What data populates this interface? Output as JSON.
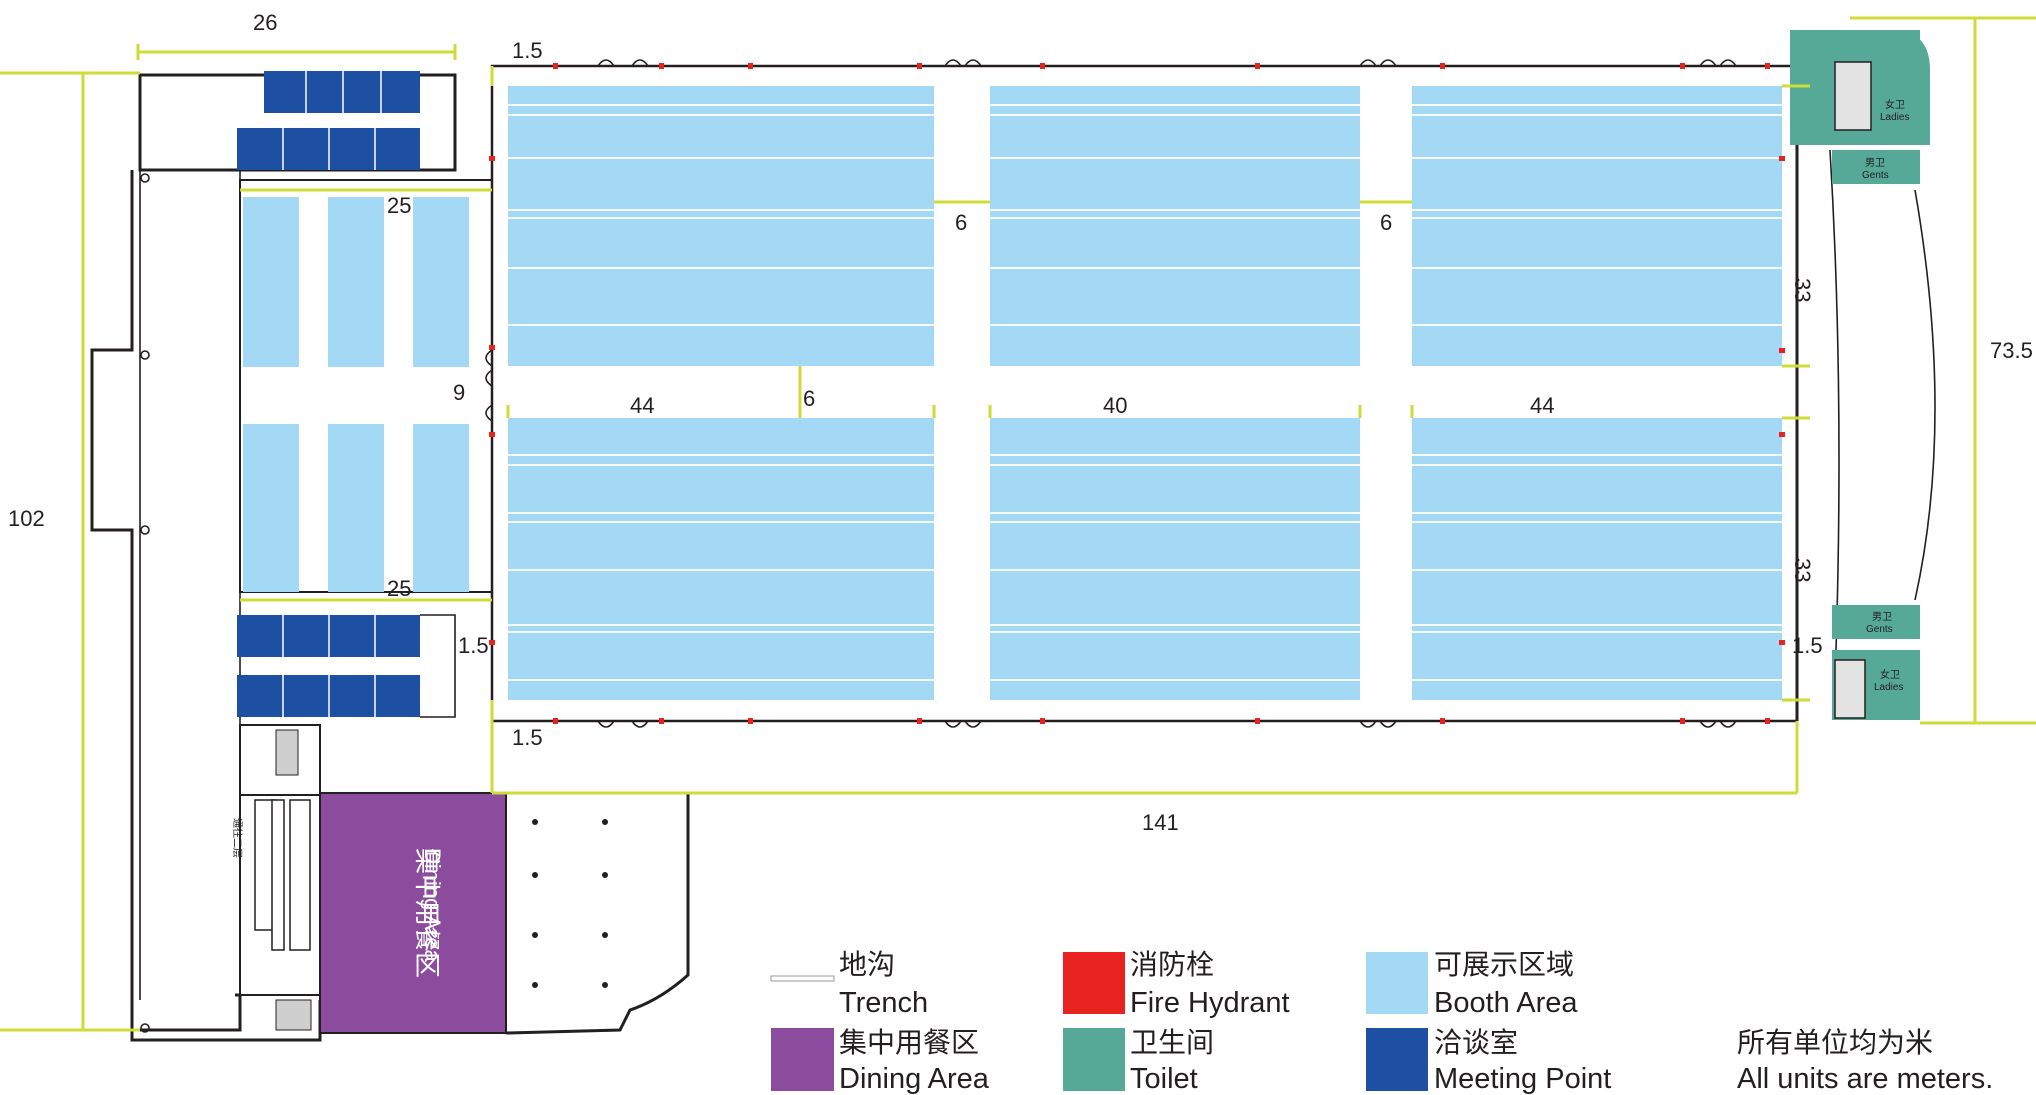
{
  "dimensions": {
    "top_hall_width": "26",
    "top_margin": "1.5",
    "meeting_block_top": "25",
    "meeting_block_bottom": "25",
    "booth_gap_1": "6",
    "booth_gap_2": "6",
    "west_aisle": "9",
    "middle_aisle": "6",
    "hall_a_width": "44",
    "hall_b_width": "40",
    "hall_c_width": "44",
    "east_upper": "33",
    "east_lower": "33",
    "left_margin": "1.5",
    "right_margin": "1.5",
    "bottom_margin": "1.5",
    "total_height": "102",
    "total_width": "141",
    "right_height": "73.5"
  },
  "rooms": {
    "ladies_top_cn": "女卫",
    "ladies_top_en": "Ladies",
    "gents_top_cn": "男卫",
    "gents_top_en": "Gents",
    "gents_bottom_cn": "男卫",
    "gents_bottom_en": "Gents",
    "ladies_bottom_cn": "女卫",
    "ladies_bottom_en": "Ladies",
    "stair_label": "通往二层",
    "dining_cn": "集中用餐区",
    "dining_en": "Dining Area"
  },
  "legend": {
    "trench_cn": "地沟",
    "trench_en": "Trench",
    "hydrant_cn": "消防栓",
    "hydrant_en": "Fire Hydrant",
    "booth_cn": "可展示区域",
    "booth_en": "Booth Area",
    "dining_cn": "集中用餐区",
    "dining_en": "Dining Area",
    "toilet_cn": "卫生间",
    "toilet_en": "Toilet",
    "meeting_cn": "洽谈室",
    "meeting_en": "Meeting Point",
    "units_cn": "所有单位均为米",
    "units_en": "All units are meters."
  },
  "colors": {
    "booth": "#a3d9f5",
    "meeting": "#1d4fa3",
    "toilet": "#56a897",
    "dining": "#8c4c9e",
    "hydrant": "#e8221e",
    "dimension_line": "#cddc39"
  }
}
